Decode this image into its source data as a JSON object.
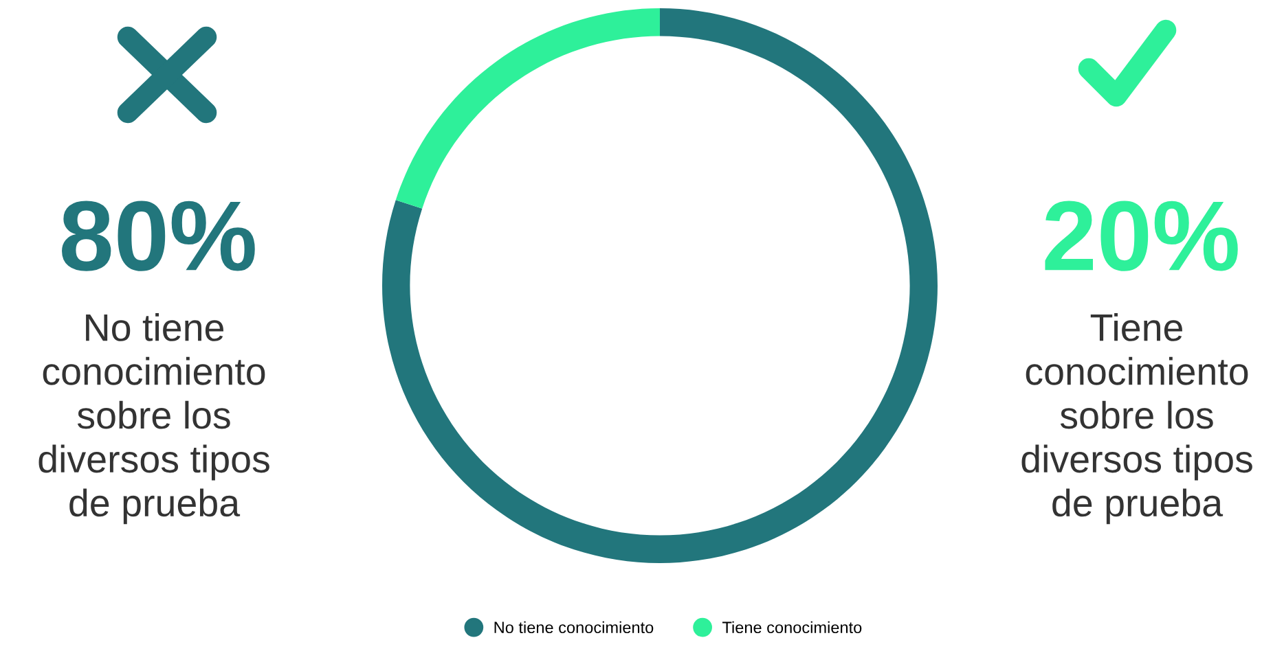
{
  "chart_data": {
    "type": "donut",
    "categories": [
      "No tiene conocimiento",
      "Tiene conocimiento"
    ],
    "values": [
      80,
      20
    ],
    "colors": [
      "#22767c",
      "#2ef09a"
    ],
    "annotations": [
      "80%",
      "20%",
      "No tiene\nconocimiento\nsobre los\ndiversos tipos\nde prueba",
      "Tiene\nconocimiento\nsobre los\ndiversos tipos\nde prueba"
    ],
    "legend": "bottom"
  }
}
